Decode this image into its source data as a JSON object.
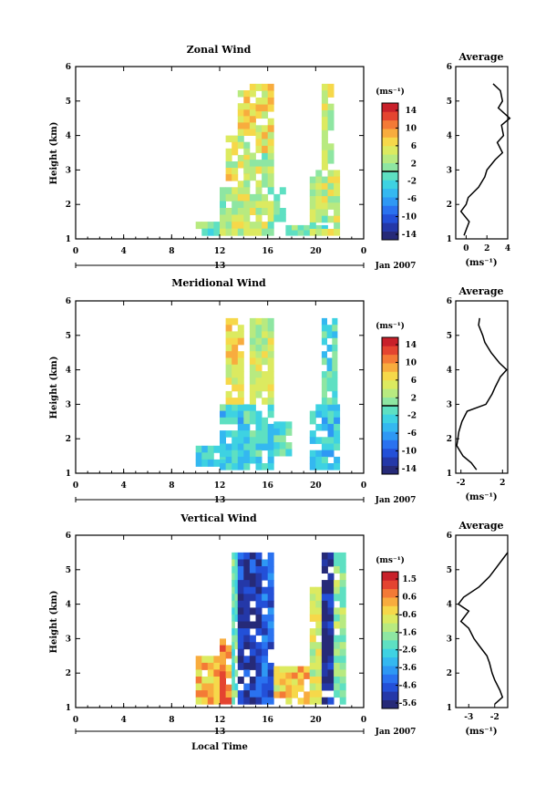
{
  "footer": {
    "date_label": "Jan 2007",
    "xlabel": "Local Time",
    "day_label": "13"
  },
  "colors": {
    "wind_scale": [
      "#262a78",
      "#2438a8",
      "#2350d8",
      "#2a72f0",
      "#2e98f4",
      "#34b8f0",
      "#3ed2e2",
      "#5ee0c2",
      "#8ee6a2",
      "#b8ea80",
      "#dcea60",
      "#f6d84a",
      "#f8ac3e",
      "#f47a36",
      "#e44430",
      "#c8202a"
    ],
    "vertical_scale": [
      "#262a78",
      "#2438a8",
      "#2350d8",
      "#2a72f0",
      "#2e98f4",
      "#34b8f0",
      "#3ed2e2",
      "#5ee0c2",
      "#8ee6a2",
      "#b8ea80",
      "#dcea60",
      "#f6d84a",
      "#f8ac3e",
      "#f47a36",
      "#e44430",
      "#c8202a"
    ]
  },
  "chart_data": [
    {
      "type": "heatmap",
      "title": "Zonal Wind",
      "xlabel": "",
      "ylabel": "Height (km)",
      "xlim": [
        0,
        24
      ],
      "ylim": [
        1,
        6
      ],
      "xticks": [
        "0",
        "4",
        "8",
        "12",
        "16",
        "20",
        "0"
      ],
      "yticks": [
        "1",
        "2",
        "3",
        "4",
        "5",
        "6"
      ],
      "colorbar": {
        "unit": "(ms⁻¹)",
        "range": [
          -16,
          16
        ],
        "labels": [
          "14",
          "10",
          "6",
          "2",
          "-2",
          "-6",
          "-10",
          "-14"
        ]
      },
      "data_blocks": [
        {
          "t_start": 10.0,
          "t_end": 12.0,
          "h_bottom": 1.1,
          "h_top": 1.5,
          "level": 0.5
        },
        {
          "t_start": 12.0,
          "t_end": 14.0,
          "h_bottom": 1.1,
          "h_top": 2.5,
          "level": 0.6
        },
        {
          "t_start": 12.5,
          "t_end": 14.5,
          "h_bottom": 2.5,
          "h_top": 4.0,
          "level": 0.65
        },
        {
          "t_start": 13.5,
          "t_end": 15.0,
          "h_bottom": 4.0,
          "h_top": 5.5,
          "level": 0.7
        },
        {
          "t_start": 14.0,
          "t_end": 16.5,
          "h_bottom": 1.1,
          "h_top": 3.5,
          "level": 0.6
        },
        {
          "t_start": 15.0,
          "t_end": 16.5,
          "h_bottom": 3.5,
          "h_top": 5.5,
          "level": 0.7
        },
        {
          "t_start": 16.5,
          "t_end": 17.5,
          "h_bottom": 1.5,
          "h_top": 2.5,
          "level": 0.55
        },
        {
          "t_start": 17.5,
          "t_end": 21.0,
          "h_bottom": 1.1,
          "h_top": 1.4,
          "level": 0.5
        },
        {
          "t_start": 19.5,
          "t_end": 22.0,
          "h_bottom": 1.1,
          "h_top": 3.0,
          "level": 0.6
        },
        {
          "t_start": 20.5,
          "t_end": 21.5,
          "h_bottom": 3.0,
          "h_top": 5.5,
          "level": 0.62
        }
      ],
      "average_profile": {
        "title": "Average",
        "xlabel": "(ms⁻¹)",
        "xlim": [
          -1,
          4
        ],
        "xticks": [
          "0",
          "2",
          "4"
        ],
        "height": [
          1.1,
          1.5,
          1.8,
          2.0,
          2.2,
          2.5,
          2.8,
          3.0,
          3.3,
          3.5,
          3.8,
          4.0,
          4.3,
          4.5,
          4.8,
          5.0,
          5.3,
          5.5
        ],
        "values": [
          -0.2,
          0.3,
          -0.5,
          0.0,
          0.2,
          1.2,
          1.8,
          2.0,
          2.8,
          3.5,
          3.0,
          3.6,
          3.4,
          4.2,
          3.1,
          3.5,
          3.3,
          2.6
        ]
      }
    },
    {
      "type": "heatmap",
      "title": "Meridional Wind",
      "xlabel": "",
      "ylabel": "Height (km)",
      "xlim": [
        0,
        24
      ],
      "ylim": [
        1,
        6
      ],
      "xticks": [
        "0",
        "4",
        "8",
        "12",
        "16",
        "20",
        "0"
      ],
      "yticks": [
        "1",
        "2",
        "3",
        "4",
        "5",
        "6"
      ],
      "colorbar": {
        "unit": "(ms⁻¹)",
        "range": [
          -16,
          16
        ],
        "labels": [
          "14",
          "10",
          "6",
          "2",
          "-2",
          "-6",
          "-10",
          "-14"
        ]
      },
      "data_blocks": [
        {
          "t_start": 10.0,
          "t_end": 12.5,
          "h_bottom": 1.2,
          "h_top": 1.8,
          "level": 0.42
        },
        {
          "t_start": 12.0,
          "t_end": 14.0,
          "h_bottom": 1.1,
          "h_top": 3.0,
          "level": 0.4
        },
        {
          "t_start": 12.5,
          "t_end": 14.0,
          "h_bottom": 3.0,
          "h_top": 5.5,
          "level": 0.7
        },
        {
          "t_start": 14.0,
          "t_end": 16.5,
          "h_bottom": 1.1,
          "h_top": 3.0,
          "level": 0.42
        },
        {
          "t_start": 14.5,
          "t_end": 16.5,
          "h_bottom": 3.0,
          "h_top": 5.5,
          "level": 0.62
        },
        {
          "t_start": 16.5,
          "t_end": 18.0,
          "h_bottom": 1.5,
          "h_top": 2.5,
          "level": 0.45
        },
        {
          "t_start": 19.5,
          "t_end": 22.0,
          "h_bottom": 1.1,
          "h_top": 3.0,
          "level": 0.38
        },
        {
          "t_start": 20.5,
          "t_end": 21.8,
          "h_bottom": 3.0,
          "h_top": 5.5,
          "level": 0.45
        }
      ],
      "average_profile": {
        "title": "Average",
        "xlabel": "(ms⁻¹)",
        "xlim": [
          -2.5,
          2.5
        ],
        "xticks": [
          "-2",
          "2"
        ],
        "height": [
          1.1,
          1.3,
          1.5,
          1.8,
          2.0,
          2.2,
          2.5,
          2.8,
          3.0,
          3.3,
          3.5,
          3.8,
          4.0,
          4.2,
          4.5,
          4.8,
          5.0,
          5.3,
          5.5
        ],
        "values": [
          -0.5,
          -1.0,
          -1.8,
          -2.4,
          -2.3,
          -2.2,
          -1.9,
          -1.4,
          0.4,
          1.0,
          1.3,
          1.8,
          2.4,
          1.7,
          0.9,
          0.3,
          0.1,
          -0.3,
          -0.2
        ]
      }
    },
    {
      "type": "heatmap",
      "title": "Vertical Wind",
      "xlabel": "Local Time",
      "ylabel": "Height (km)",
      "xlim": [
        0,
        24
      ],
      "ylim": [
        1,
        6
      ],
      "xticks": [
        "0",
        "4",
        "8",
        "12",
        "16",
        "20",
        "0"
      ],
      "yticks": [
        "1",
        "2",
        "3",
        "4",
        "5",
        "6"
      ],
      "colorbar": {
        "unit": "(ms⁻¹)",
        "range": [
          -6.2,
          2.2
        ],
        "labels": [
          "1.5",
          "0.6",
          "-0.6",
          "-1.6",
          "-2.6",
          "-3.6",
          "-4.6",
          "-5.6"
        ]
      },
      "data_blocks": [
        {
          "t_start": 10.0,
          "t_end": 12.0,
          "h_bottom": 1.1,
          "h_top": 2.5,
          "level": 0.75
        },
        {
          "t_start": 12.0,
          "t_end": 13.0,
          "h_bottom": 1.1,
          "h_top": 3.0,
          "level": 0.85
        },
        {
          "t_start": 13.0,
          "t_end": 13.5,
          "h_bottom": 1.1,
          "h_top": 5.5,
          "level": 0.5
        },
        {
          "t_start": 13.5,
          "t_end": 15.5,
          "h_bottom": 1.1,
          "h_top": 5.5,
          "level": 0.1
        },
        {
          "t_start": 15.5,
          "t_end": 16.5,
          "h_bottom": 1.1,
          "h_top": 5.5,
          "level": 0.2
        },
        {
          "t_start": 16.5,
          "t_end": 20.0,
          "h_bottom": 1.1,
          "h_top": 2.2,
          "level": 0.72
        },
        {
          "t_start": 19.5,
          "t_end": 20.5,
          "h_bottom": 1.1,
          "h_top": 4.5,
          "level": 0.65
        },
        {
          "t_start": 20.5,
          "t_end": 21.5,
          "h_bottom": 1.1,
          "h_top": 5.5,
          "level": 0.05
        },
        {
          "t_start": 21.5,
          "t_end": 22.5,
          "h_bottom": 1.1,
          "h_top": 5.5,
          "level": 0.55
        }
      ],
      "average_profile": {
        "title": "Average",
        "xlabel": "(ms⁻¹)",
        "xlim": [
          -3.5,
          -1.5
        ],
        "xticks": [
          "-3",
          "-2"
        ],
        "height": [
          1.1,
          1.3,
          1.5,
          1.8,
          2.0,
          2.3,
          2.5,
          2.8,
          3.0,
          3.3,
          3.5,
          3.8,
          4.0,
          4.2,
          4.5,
          4.8,
          5.0,
          5.3,
          5.5
        ],
        "values": [
          -2.0,
          -1.7,
          -1.8,
          -2.0,
          -2.1,
          -2.2,
          -2.3,
          -2.6,
          -2.8,
          -3.0,
          -3.3,
          -3.0,
          -3.4,
          -3.2,
          -2.6,
          -2.2,
          -2.0,
          -1.7,
          -1.5
        ]
      }
    }
  ]
}
